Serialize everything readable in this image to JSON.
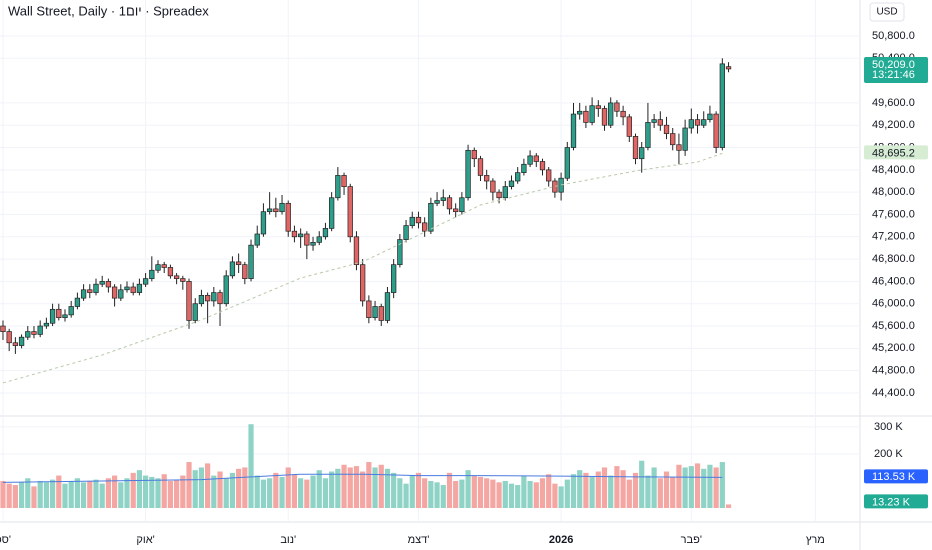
{
  "chart_data": {
    "type": "candlestick",
    "title": "Wall Street, Daily · 1יום · Spreadex",
    "currency": "USD",
    "up_color": "#2e9e8a",
    "down_color": "#e06666",
    "xlim": [
      -0.48,
      138.2
    ],
    "xticks": [
      {
        "value": 0,
        "label": "ספ'"
      },
      {
        "value": 23,
        "label": "אוק'"
      },
      {
        "value": 46,
        "label": "נוב'"
      },
      {
        "value": 67,
        "label": "דצמ'"
      },
      {
        "value": 90,
        "label": "2026"
      },
      {
        "value": 111,
        "label": "פבר'"
      },
      {
        "value": 131,
        "label": "מרץ"
      }
    ],
    "ylim": [
      44005,
      51445
    ],
    "yticks": [
      {
        "value": 50800,
        "label": "50,800.0"
      },
      {
        "value": 50400,
        "label": "50,400.0"
      },
      {
        "value": 49600,
        "label": "49,600.0"
      },
      {
        "value": 49200,
        "label": "49,200.0"
      },
      {
        "value": 48800,
        "label": "48,800.0"
      },
      {
        "value": 48400,
        "label": "48,400.0"
      },
      {
        "value": 48000,
        "label": "48,000.0"
      },
      {
        "value": 47600,
        "label": "47,600.0"
      },
      {
        "value": 47200,
        "label": "47,200.0"
      },
      {
        "value": 46800,
        "label": "46,800.0"
      },
      {
        "value": 46400,
        "label": "46,400.0"
      },
      {
        "value": 46000,
        "label": "46,000.0"
      },
      {
        "value": 45600,
        "label": "45,600.0"
      },
      {
        "value": 45200,
        "label": "45,200.0"
      },
      {
        "value": 44800,
        "label": "44,800.0"
      },
      {
        "value": 44400,
        "label": "44,400.0"
      }
    ],
    "grid": true,
    "open": [
      45600,
      45500,
      45300,
      45250,
      45400,
      45500,
      45450,
      45600,
      45650,
      45900,
      45750,
      45800,
      45950,
      46100,
      46250,
      46200,
      46350,
      46400,
      46300,
      46100,
      46250,
      46300,
      46200,
      46350,
      46450,
      46600,
      46700,
      46650,
      46500,
      46450,
      46400,
      45700,
      46000,
      46150,
      46050,
      46200,
      46000,
      46500,
      46750,
      46700,
      46450,
      47050,
      47250,
      47650,
      47700,
      47650,
      47800,
      47300,
      47200,
      47250,
      47050,
      47100,
      47200,
      47350,
      47900,
      48300,
      48100,
      47200,
      46700,
      46050,
      45750,
      45950,
      45700,
      46200,
      46700,
      47150,
      47400,
      47550,
      47450,
      47300,
      47800,
      47850,
      47900,
      47700,
      47650,
      47900,
      48750,
      48600,
      48300,
      48200,
      48000,
      47900,
      48100,
      48200,
      48350,
      48500,
      48650,
      48550,
      48400,
      48200,
      48000,
      48250,
      48800,
      49400,
      49450,
      49250,
      49550,
      49500,
      49200,
      49600,
      49450,
      49350,
      49000,
      48600,
      48800,
      49250,
      49300,
      49200,
      49050,
      48850,
      48750,
      49150,
      49300,
      49200,
      49300,
      49400,
      48800,
      50250
    ],
    "high": [
      45700,
      45550,
      45400,
      45450,
      45600,
      45600,
      45700,
      45750,
      46000,
      46000,
      45900,
      46050,
      46200,
      46350,
      46350,
      46450,
      46500,
      46450,
      46350,
      46350,
      46400,
      46380,
      46450,
      46550,
      46850,
      46780,
      46750,
      46700,
      46550,
      46500,
      46450,
      46100,
      46250,
      46200,
      46300,
      46250,
      46600,
      46850,
      46900,
      46750,
      47150,
      47400,
      47800,
      48000,
      47900,
      47950,
      47850,
      47400,
      47350,
      47300,
      47200,
      47300,
      47450,
      48000,
      48450,
      48350,
      48150,
      47300,
      46800,
      46150,
      46050,
      46000,
      46300,
      46800,
      47250,
      47500,
      47650,
      47650,
      47550,
      47900,
      48000,
      48050,
      47950,
      47800,
      48000,
      48850,
      48800,
      48650,
      48400,
      48250,
      48050,
      48200,
      48300,
      48450,
      48600,
      48750,
      48700,
      48600,
      48450,
      48250,
      48350,
      48900,
      49600,
      49600,
      49550,
      49700,
      49650,
      49550,
      49700,
      49650,
      49550,
      49400,
      49050,
      48900,
      49600,
      49400,
      49450,
      49350,
      49150,
      49050,
      49300,
      49500,
      49400,
      49450,
      49550,
      49450,
      50400,
      50330
    ],
    "low": [
      45350,
      45150,
      45100,
      45200,
      45350,
      45380,
      45400,
      45550,
      45600,
      45700,
      45680,
      45750,
      45900,
      46050,
      46100,
      46150,
      46300,
      46200,
      45950,
      46050,
      46200,
      46150,
      46150,
      46300,
      46400,
      46550,
      46550,
      46450,
      46350,
      46250,
      45550,
      45650,
      45950,
      45650,
      45950,
      45600,
      45950,
      46450,
      46550,
      46350,
      46400,
      47000,
      47200,
      47600,
      47550,
      47600,
      47200,
      47100,
      47000,
      46800,
      46950,
      47050,
      47150,
      47300,
      47850,
      47950,
      47100,
      46600,
      45950,
      45650,
      45700,
      45600,
      45650,
      46100,
      46650,
      47100,
      47350,
      47350,
      47200,
      47250,
      47750,
      47750,
      47600,
      47550,
      47600,
      47850,
      48450,
      48200,
      48050,
      47850,
      47800,
      47850,
      48050,
      48150,
      48300,
      48450,
      48450,
      48300,
      48100,
      47900,
      47850,
      48200,
      48750,
      49300,
      49150,
      49200,
      49350,
      49100,
      49150,
      49350,
      49200,
      48900,
      48500,
      48350,
      48750,
      49150,
      49100,
      48950,
      48750,
      48500,
      48650,
      49050,
      49050,
      49150,
      49250,
      48700,
      48750,
      50150
    ],
    "close": [
      45500,
      45300,
      45250,
      45400,
      45500,
      45450,
      45600,
      45650,
      45900,
      45750,
      45800,
      45950,
      46100,
      46250,
      46200,
      46350,
      46400,
      46300,
      46100,
      46250,
      46300,
      46200,
      46350,
      46450,
      46600,
      46700,
      46650,
      46500,
      46450,
      46400,
      45700,
      46000,
      46150,
      46050,
      46200,
      46000,
      46500,
      46750,
      46700,
      46450,
      47050,
      47250,
      47650,
      47700,
      47650,
      47800,
      47300,
      47200,
      47250,
      47050,
      47100,
      47200,
      47350,
      47900,
      48300,
      48100,
      47200,
      46700,
      46050,
      45750,
      45950,
      45700,
      46200,
      46700,
      47150,
      47400,
      47550,
      47450,
      47300,
      47800,
      47850,
      47900,
      47700,
      47650,
      47900,
      48750,
      48600,
      48300,
      48200,
      48000,
      47900,
      48100,
      48200,
      48350,
      48500,
      48650,
      48550,
      48400,
      48200,
      48000,
      48250,
      48800,
      49400,
      49450,
      49250,
      49550,
      49500,
      49200,
      49600,
      49450,
      49350,
      49000,
      48600,
      48800,
      49250,
      49300,
      49200,
      49050,
      48850,
      48750,
      49150,
      49300,
      49200,
      49300,
      49400,
      48800,
      50300,
      50209
    ],
    "price_label": {
      "value": 50209.0,
      "label": "50,209.0",
      "time": "13:21:46"
    },
    "ma": {
      "color": "#b8c9a8",
      "x": [
        0,
        16,
        32,
        48,
        58,
        67,
        77,
        90,
        103,
        112,
        116
      ],
      "values": [
        44580,
        45080,
        45710,
        46460,
        46750,
        47230,
        47770,
        48130,
        48400,
        48540,
        48695.2
      ],
      "last_label": "48,695.2"
    },
    "volume": {
      "up_color": "#8fd3c6",
      "down_color": "#f4a6a3",
      "ylim": [
        0,
        333
      ],
      "yticks": [
        {
          "value": 300,
          "label": "300 K"
        },
        {
          "value": 200,
          "label": "200 K"
        }
      ],
      "values": [
        100,
        90,
        85,
        95,
        110,
        80,
        100,
        95,
        105,
        120,
        90,
        100,
        110,
        95,
        100,
        105,
        90,
        110,
        120,
        95,
        110,
        130,
        140,
        120,
        115,
        110,
        125,
        100,
        105,
        120,
        170,
        140,
        150,
        165,
        120,
        135,
        110,
        130,
        145,
        150,
        310,
        120,
        105,
        110,
        130,
        115,
        150,
        125,
        110,
        105,
        120,
        140,
        110,
        135,
        145,
        160,
        150,
        155,
        135,
        170,
        150,
        160,
        145,
        130,
        110,
        90,
        120,
        130,
        110,
        100,
        95,
        85,
        130,
        100,
        105,
        140,
        120,
        115,
        110,
        105,
        95,
        100,
        90,
        85,
        120,
        100,
        95,
        110,
        125,
        90,
        80,
        105,
        125,
        140,
        130,
        115,
        135,
        150,
        120,
        155,
        140,
        105,
        130,
        175,
        120,
        150,
        110,
        135,
        115,
        160,
        150,
        155,
        165,
        145,
        160,
        150,
        170,
        13.23
      ],
      "last_label": "13.23 K"
    },
    "volume_ma": {
      "color": "#4a7be0",
      "x": [
        0,
        16,
        32,
        40,
        48,
        58,
        67,
        77,
        90,
        103,
        116
      ],
      "values": [
        95,
        100,
        105,
        115,
        125,
        125,
        120,
        120,
        118,
        115,
        113.53
      ],
      "last_label": "113.53 K"
    }
  }
}
